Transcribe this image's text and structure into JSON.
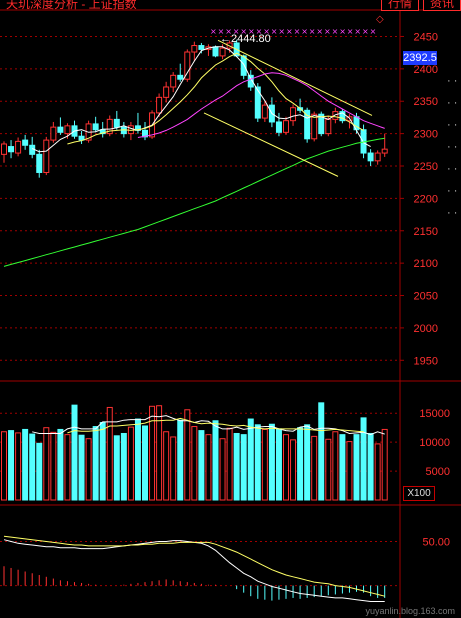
{
  "header": {
    "title": "天玑深度分析 - 上证指数",
    "tabs": [
      "行情",
      "资讯"
    ]
  },
  "badges": {
    "current_price": "2392.5",
    "peak_label": "2444.80",
    "volume_unit": "X100",
    "watermark": "yuyanlin.blog.163.com"
  },
  "colors": {
    "up": "#ff3232",
    "down": "#54ffff",
    "ma5": "#ffffff",
    "ma10": "#ffff66",
    "ma20": "#ff44ff",
    "ma60": "#33ff33",
    "grid": "#a00000"
  },
  "chart_data": [
    {
      "type": "candlestick",
      "name": "price",
      "y_ticks": [
        "2450",
        "2400",
        "2350",
        "2300",
        "2250",
        "2200",
        "2150",
        "2100",
        "2050",
        "2000",
        "1950"
      ],
      "ylim": [
        1935,
        2460
      ],
      "ohlc": [
        [
          2268,
          2288,
          2255,
          2284
        ],
        [
          2280,
          2290,
          2262,
          2272
        ],
        [
          2270,
          2294,
          2265,
          2288
        ],
        [
          2290,
          2298,
          2275,
          2282
        ],
        [
          2282,
          2295,
          2262,
          2268
        ],
        [
          2268,
          2275,
          2232,
          2240
        ],
        [
          2240,
          2295,
          2236,
          2290
        ],
        [
          2290,
          2318,
          2286,
          2310
        ],
        [
          2310,
          2325,
          2298,
          2302
        ],
        [
          2300,
          2316,
          2292,
          2312
        ],
        [
          2312,
          2320,
          2292,
          2296
        ],
        [
          2296,
          2304,
          2284,
          2290
        ],
        [
          2290,
          2320,
          2286,
          2315
        ],
        [
          2315,
          2326,
          2302,
          2306
        ],
        [
          2306,
          2318,
          2294,
          2300
        ],
        [
          2300,
          2328,
          2296,
          2322
        ],
        [
          2322,
          2335,
          2306,
          2310
        ],
        [
          2310,
          2318,
          2294,
          2300
        ],
        [
          2300,
          2318,
          2290,
          2312
        ],
        [
          2312,
          2332,
          2300,
          2305
        ],
        [
          2305,
          2318,
          2290,
          2295
        ],
        [
          2295,
          2336,
          2292,
          2332
        ],
        [
          2332,
          2362,
          2326,
          2356
        ],
        [
          2356,
          2380,
          2348,
          2372
        ],
        [
          2372,
          2395,
          2364,
          2390
        ],
        [
          2390,
          2408,
          2380,
          2384
        ],
        [
          2384,
          2430,
          2380,
          2426
        ],
        [
          2426,
          2442,
          2412,
          2436
        ],
        [
          2436,
          2440,
          2424,
          2430
        ],
        [
          2430,
          2438,
          2420,
          2434
        ],
        [
          2434,
          2436,
          2418,
          2420
        ],
        [
          2420,
          2438,
          2415,
          2432
        ],
        [
          2432,
          2444,
          2425,
          2440
        ],
        [
          2440,
          2445,
          2418,
          2420
        ],
        [
          2420,
          2422,
          2384,
          2390
        ],
        [
          2390,
          2398,
          2366,
          2372
        ],
        [
          2372,
          2378,
          2318,
          2324
        ],
        [
          2324,
          2350,
          2318,
          2344
        ],
        [
          2344,
          2356,
          2310,
          2318
        ],
        [
          2318,
          2332,
          2296,
          2302
        ],
        [
          2302,
          2326,
          2298,
          2320
        ],
        [
          2320,
          2345,
          2312,
          2340
        ],
        [
          2340,
          2354,
          2332,
          2336
        ],
        [
          2336,
          2340,
          2286,
          2292
        ],
        [
          2292,
          2334,
          2288,
          2330
        ],
        [
          2330,
          2334,
          2296,
          2300
        ],
        [
          2300,
          2328,
          2296,
          2322
        ],
        [
          2322,
          2340,
          2316,
          2334
        ],
        [
          2334,
          2338,
          2316,
          2320
        ],
        [
          2320,
          2330,
          2308,
          2326
        ],
        [
          2326,
          2332,
          2300,
          2306
        ],
        [
          2306,
          2314,
          2262,
          2270
        ],
        [
          2270,
          2276,
          2250,
          2258
        ],
        [
          2258,
          2274,
          2252,
          2270
        ],
        [
          2270,
          2300,
          2264,
          2276
        ]
      ],
      "series": [
        {
          "name": "MA5",
          "start": 4,
          "values": [
            2277,
            2272,
            2273,
            2282,
            2291,
            2296,
            2304,
            2306,
            2302,
            2303,
            2307,
            2307,
            2309,
            2312,
            2308,
            2305,
            2309,
            2313,
            2329,
            2343,
            2357,
            2376,
            2394,
            2412,
            2428,
            2432,
            2434,
            2434,
            2429,
            2419,
            2407,
            2385,
            2367,
            2351,
            2331,
            2324,
            2323,
            2327,
            2329,
            2324,
            2328,
            2326,
            2322,
            2329,
            2332,
            2324,
            2305,
            2286,
            2280
          ]
        },
        {
          "name": "MA10",
          "start": 9,
          "values": [
            2284,
            2287,
            2289,
            2293,
            2298,
            2301,
            2304,
            2305,
            2306,
            2305,
            2306,
            2308,
            2312,
            2320,
            2329,
            2339,
            2349,
            2360,
            2372,
            2386,
            2396,
            2406,
            2412,
            2419,
            2424,
            2419,
            2411,
            2401,
            2392,
            2380,
            2366,
            2354,
            2347,
            2339,
            2328,
            2325,
            2326,
            2327,
            2326,
            2324,
            2318,
            2311,
            2305
          ]
        },
        {
          "name": "MA20",
          "start": 19,
          "values": [
            2294,
            2296,
            2298,
            2301,
            2305,
            2310,
            2316,
            2322,
            2330,
            2338,
            2345,
            2352,
            2358,
            2366,
            2374,
            2380,
            2384,
            2388,
            2392,
            2394,
            2393,
            2390,
            2385,
            2380,
            2374,
            2366,
            2358,
            2350,
            2344,
            2338,
            2332,
            2326,
            2320,
            2316,
            2312,
            2308
          ]
        },
        {
          "name": "MA60",
          "start": 0,
          "values": [
            2095,
            2098,
            2101,
            2104,
            2107,
            2110,
            2113,
            2116,
            2119,
            2122,
            2125,
            2128,
            2131,
            2134,
            2137,
            2140,
            2143,
            2146,
            2149,
            2152,
            2156,
            2160,
            2164,
            2168,
            2172,
            2176,
            2180,
            2184,
            2188,
            2192,
            2196,
            2201,
            2206,
            2211,
            2216,
            2221,
            2226,
            2231,
            2236,
            2241,
            2246,
            2251,
            2256,
            2261,
            2265,
            2269,
            2273,
            2276,
            2279,
            2282,
            2285,
            2287,
            2289,
            2291,
            2293
          ]
        }
      ]
    },
    {
      "type": "bar",
      "name": "volume",
      "unit": "X100",
      "y_ticks": [
        "15000",
        "10000",
        "5000"
      ],
      "ylim": [
        0,
        18500
      ],
      "values": [
        11800,
        12000,
        11600,
        12200,
        11400,
        9800,
        12500,
        11700,
        12200,
        11300,
        16400,
        11200,
        10600,
        12700,
        13400,
        16000,
        11100,
        11500,
        12600,
        14000,
        12800,
        16200,
        16300,
        11800,
        10900,
        13800,
        15600,
        12700,
        12000,
        11300,
        13700,
        10600,
        12400,
        11500,
        11300,
        14000,
        13000,
        12200,
        13100,
        12300,
        11300,
        10400,
        12500,
        13000,
        11000,
        16800,
        10500,
        11800,
        11300,
        10100,
        11300,
        14200,
        11500,
        9700,
        12200
      ],
      "series": [
        {
          "name": "VMA5",
          "start": 4,
          "values": [
            11800,
            11500,
            11500,
            11500,
            11500,
            12300,
            12600,
            12300,
            12300,
            12300,
            13500,
            13500,
            13500,
            13800,
            13900,
            13900,
            13900,
            14500,
            14400,
            14600,
            14100,
            13700,
            13700,
            13400,
            13700,
            13600,
            12800,
            12300,
            12300,
            12600,
            12200,
            12400,
            12600,
            12700,
            12700,
            12300,
            12000,
            11900,
            12600,
            12800,
            12200,
            12400,
            12400,
            12300,
            12000,
            11500,
            11600,
            11700,
            11300,
            11800,
            11400
          ]
        },
        {
          "name": "VMA10",
          "start": 9,
          "values": [
            11600,
            12000,
            11900,
            11900,
            12000,
            12200,
            12800,
            12800,
            12900,
            13000,
            13100,
            13300,
            13700,
            13700,
            13800,
            13800,
            14100,
            13800,
            13400,
            13200,
            13300,
            13200,
            13100,
            12900,
            12800,
            12900,
            12600,
            12400,
            12300,
            12400,
            12300,
            12300,
            12300,
            12300,
            12200,
            12100,
            12000,
            12100,
            12200,
            12100,
            12000,
            11900,
            11800
          ]
        }
      ]
    },
    {
      "type": "bar",
      "name": "macd",
      "y_ticks": [
        "50.00"
      ],
      "ylim": [
        -22,
        88
      ],
      "values": [
        22,
        20,
        18,
        16,
        14,
        12,
        10,
        8,
        6,
        5,
        4,
        3,
        2,
        1,
        0,
        0,
        0,
        1,
        2,
        3,
        4,
        5,
        6,
        7,
        6,
        5,
        4,
        3,
        2,
        1,
        1,
        0,
        0,
        -4,
        -8,
        -12,
        -15,
        -16,
        -17,
        -16,
        -15,
        -14,
        -15,
        -14,
        -13,
        -12,
        -11,
        -10,
        -9,
        -8,
        -7,
        -8,
        -12,
        -14,
        -14
      ],
      "series": [
        {
          "name": "DIF",
          "start": 0,
          "values": [
            52,
            50,
            48,
            47,
            46,
            45,
            44,
            44,
            43,
            43,
            43,
            42,
            42,
            42,
            42,
            43,
            44,
            45,
            46,
            47,
            48,
            49,
            50,
            50,
            51,
            51,
            50,
            49,
            48,
            45,
            40,
            33,
            26,
            20,
            14,
            10,
            5,
            2,
            -1,
            -3,
            -5,
            -7,
            -9,
            -10,
            -11,
            -12,
            -13,
            -14,
            -14,
            -15,
            -16,
            -17,
            -18,
            -18,
            -18
          ]
        },
        {
          "name": "DEA",
          "start": 0,
          "values": [
            56,
            55,
            54,
            53,
            52,
            51,
            50,
            49,
            48,
            47,
            46,
            46,
            45,
            45,
            45,
            45,
            45,
            45,
            46,
            46,
            47,
            47,
            48,
            48,
            48,
            49,
            49,
            49,
            49,
            49,
            47,
            44,
            41,
            38,
            34,
            30,
            26,
            22,
            18,
            15,
            12,
            10,
            8,
            6,
            4,
            3,
            2,
            0,
            -1,
            -2,
            -4,
            -6,
            -8,
            -10,
            -12
          ]
        }
      ]
    }
  ]
}
